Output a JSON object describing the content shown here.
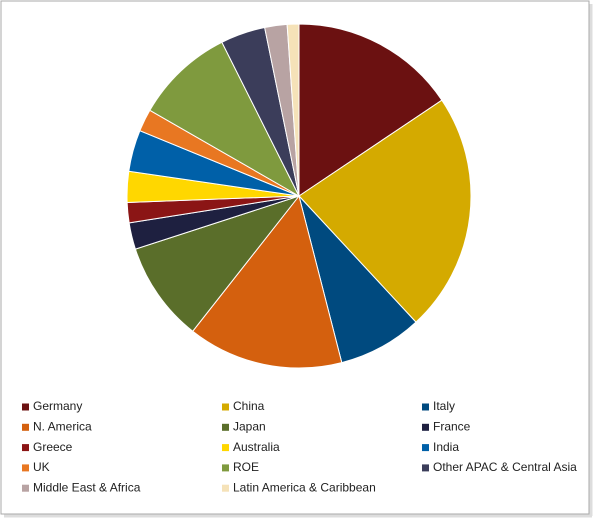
{
  "chart_data": {
    "type": "pie",
    "categories": [
      "Germany",
      "China",
      "Italy",
      "N. America",
      "Japan",
      "France",
      "Greece",
      "Australia",
      "India",
      "UK",
      "ROE",
      "Other APAC & Central Asia",
      "Middle East & Africa",
      "Latin America & Caribbean"
    ],
    "values": [
      15.6,
      22.5,
      7.9,
      14.6,
      9.4,
      2.5,
      1.9,
      2.9,
      3.9,
      2.1,
      9.3,
      4.2,
      2.1,
      1.1
    ],
    "colors": [
      "#6b1111",
      "#d4aa00",
      "#004a7f",
      "#d4600e",
      "#5a6e2a",
      "#1e2040",
      "#8b1515",
      "#ffd700",
      "#0060a8",
      "#e87722",
      "#7f9a3e",
      "#3b3d5a",
      "#b8a3a3",
      "#f5e2b8"
    ],
    "legend": "bottom"
  }
}
